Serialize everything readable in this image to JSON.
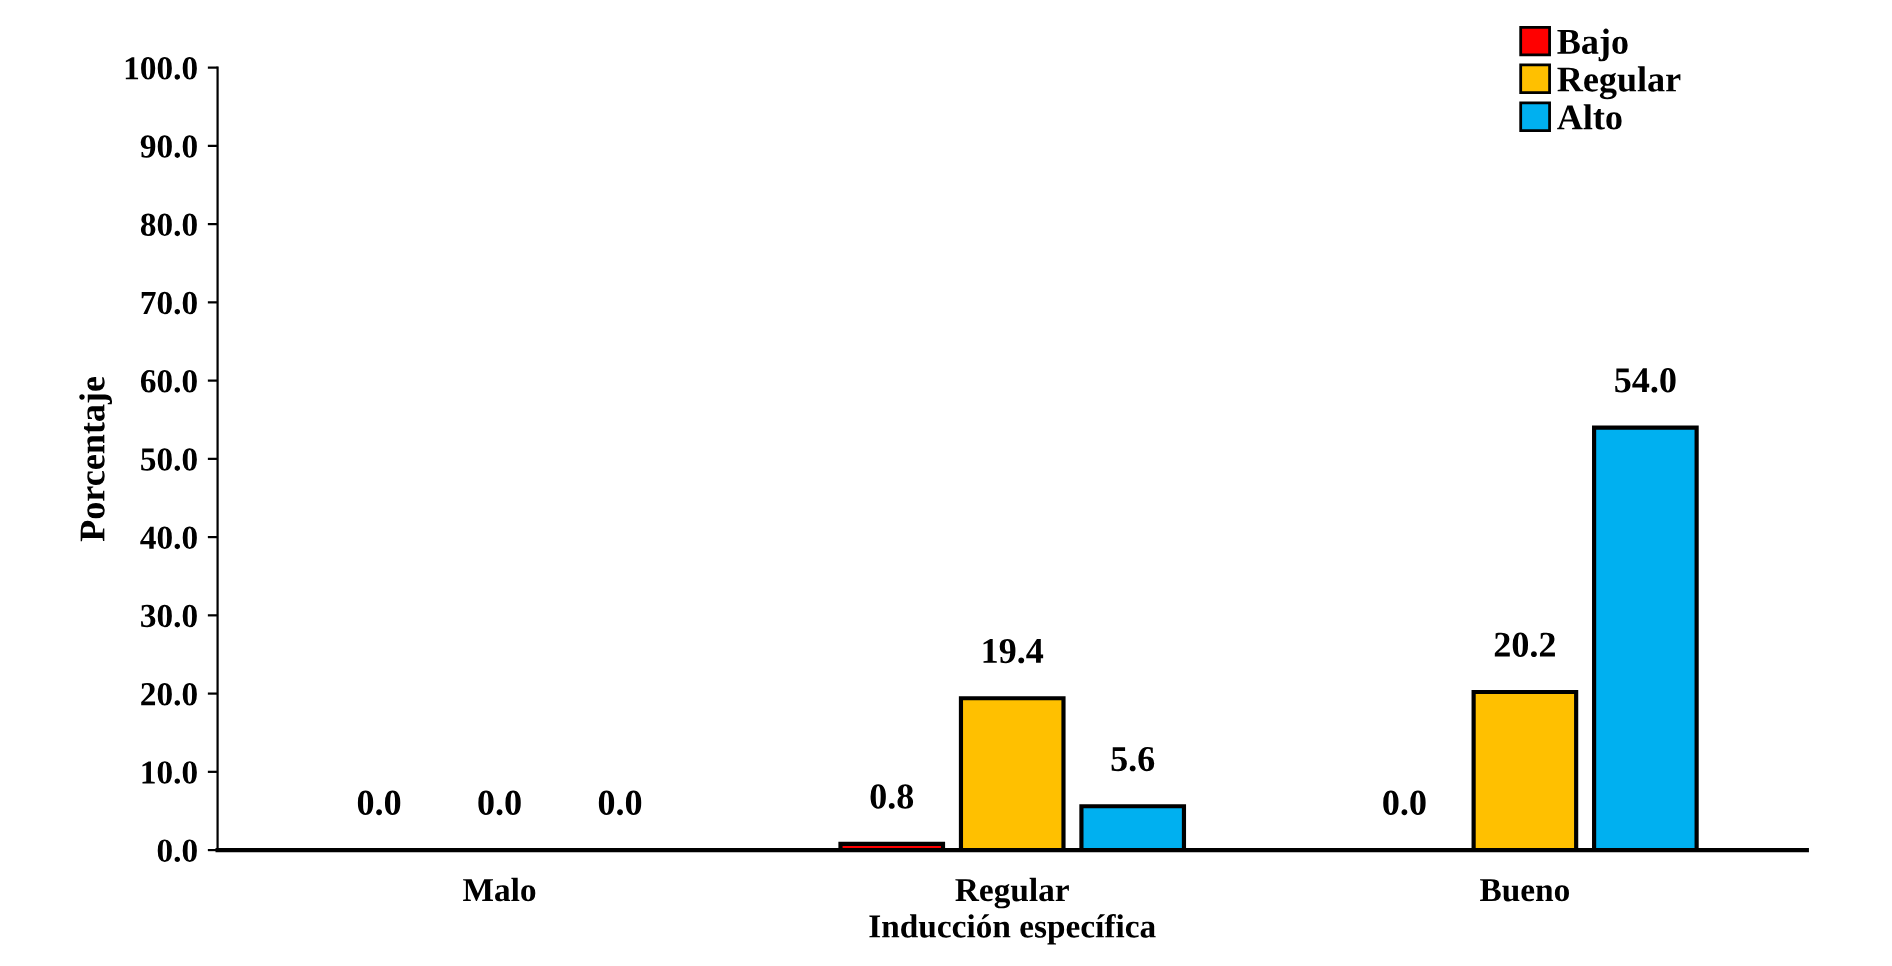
{
  "chart_data": {
    "type": "bar",
    "xlabel": "Inducción específica",
    "ylabel": "Porcentaje",
    "categories": [
      "Malo",
      "Regular",
      "Bueno"
    ],
    "series": [
      {
        "name": "Bajo",
        "color": "#ff0000",
        "values": [
          0,
          0.8,
          0
        ],
        "value_labels": [
          "0.0",
          "0.8",
          "0.0"
        ]
      },
      {
        "name": "Regular",
        "color": "#ffc000",
        "values": [
          0,
          19.4,
          20.2
        ],
        "value_labels": [
          "0.0",
          "19.4",
          "20.2"
        ]
      },
      {
        "name": "Alto",
        "color": "#00b0f0",
        "values": [
          0,
          5.6,
          54.0
        ],
        "value_labels": [
          "0.0",
          "5.6",
          "54.0"
        ]
      }
    ],
    "ylim": [
      0,
      100
    ],
    "yticks": [
      {
        "value": 0,
        "label": "0.0"
      },
      {
        "value": 10,
        "label": "10.0"
      },
      {
        "value": 20,
        "label": "20.0"
      },
      {
        "value": 30,
        "label": "30.0"
      },
      {
        "value": 40,
        "label": "40.0"
      },
      {
        "value": 50,
        "label": "50.0"
      },
      {
        "value": 60,
        "label": "60.0"
      },
      {
        "value": 70,
        "label": "70.0"
      },
      {
        "value": 80,
        "label": "80.0"
      },
      {
        "value": 90,
        "label": "90.0"
      },
      {
        "value": 100,
        "label": "100.0"
      }
    ],
    "grid": false,
    "legend": "top right"
  }
}
